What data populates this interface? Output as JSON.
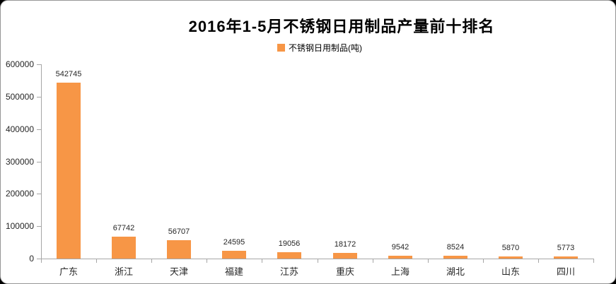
{
  "title": "2016年1-5月不锈钢日用制品产量前十排名",
  "legend": {
    "label": "不锈钢日用制品(吨)"
  },
  "colors": {
    "bar": "#F79646",
    "axis": "#A6A6A6",
    "label_text": "#262626",
    "title_text": "#000000"
  },
  "chart_data": {
    "type": "bar",
    "title": "2016年1-5月不锈钢日用制品产量前十排名",
    "legend_entries": [
      "不锈钢日用制品(吨)"
    ],
    "legend_position": "top",
    "categories": [
      "广东",
      "浙江",
      "天津",
      "福建",
      "江苏",
      "重庆",
      "上海",
      "湖北",
      "山东",
      "四川"
    ],
    "values": [
      542745,
      67742,
      56707,
      24595,
      19056,
      18172,
      9542,
      8524,
      5870,
      5773
    ],
    "xlabel": "",
    "ylabel": "",
    "ylim": [
      0,
      600000
    ],
    "ytick_step": 100000,
    "ytick_labels": [
      "0",
      "100000",
      "200000",
      "300000",
      "400000",
      "500000",
      "600000"
    ],
    "grid": false,
    "data_labels": true,
    "bar_color": "#F79646"
  }
}
